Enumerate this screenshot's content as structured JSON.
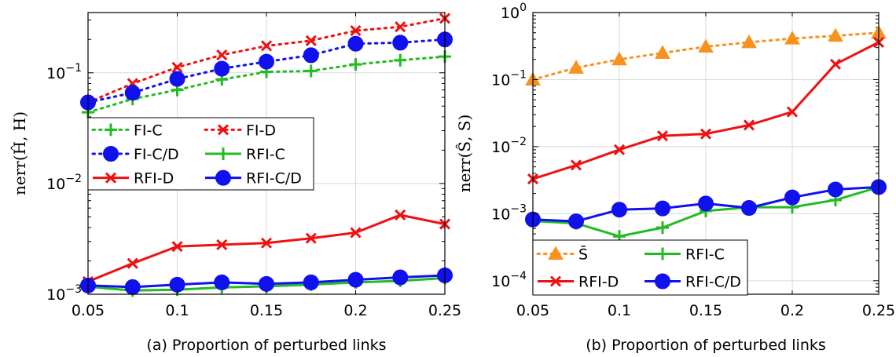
{
  "chart_data": [
    {
      "type": "line",
      "caption": "(a) Proportion of perturbed links",
      "ylabel": "nerr(Ĥ, H)",
      "yscale": "log",
      "xlim": [
        0.05,
        0.25
      ],
      "ylim": [
        0.001,
        0.35
      ],
      "x_ticks": [
        "0.05",
        "0.1",
        "0.15",
        "0.2",
        "0.25"
      ],
      "y_ticks": [
        {
          "base": "10",
          "exp": "−1",
          "value": 0.1
        },
        {
          "base": "10",
          "exp": "−2",
          "value": 0.01
        },
        {
          "base": "10",
          "exp": "−3",
          "value": 0.001
        }
      ],
      "grid": true,
      "legend_position": "center-left",
      "x": [
        0.05,
        0.075,
        0.1,
        0.125,
        0.15,
        0.175,
        0.2,
        0.225,
        0.25
      ],
      "series": [
        {
          "name": "FI-C",
          "color": "#22bb22",
          "style": "dotted",
          "marker": "plus",
          "values": [
            0.044,
            0.058,
            0.07,
            0.087,
            0.102,
            0.104,
            0.119,
            0.13,
            0.14
          ]
        },
        {
          "name": "FI-D",
          "color": "#ee1111",
          "style": "dotted",
          "marker": "x",
          "values": [
            0.054,
            0.08,
            0.112,
            0.145,
            0.175,
            0.195,
            0.24,
            0.26,
            0.31
          ]
        },
        {
          "name": "FI-C/D",
          "color": "#1111ee",
          "style": "dotted",
          "marker": "circle",
          "values": [
            0.054,
            0.066,
            0.088,
            0.109,
            0.126,
            0.144,
            0.183,
            0.187,
            0.2
          ]
        },
        {
          "name": "RFI-C",
          "color": "#22bb22",
          "style": "solid",
          "marker": "plus",
          "values": [
            0.00117,
            0.00108,
            0.0011,
            0.00115,
            0.00118,
            0.00122,
            0.00128,
            0.00132,
            0.0014
          ]
        },
        {
          "name": "RFI-D",
          "color": "#ee1111",
          "style": "solid",
          "marker": "x",
          "values": [
            0.0013,
            0.0019,
            0.0027,
            0.0028,
            0.0029,
            0.0032,
            0.0036,
            0.0052,
            0.0043
          ]
        },
        {
          "name": "RFI-C/D",
          "color": "#1111ee",
          "style": "solid",
          "marker": "circle",
          "values": [
            0.0012,
            0.00116,
            0.00122,
            0.00128,
            0.00124,
            0.00128,
            0.00135,
            0.00142,
            0.00148
          ]
        }
      ]
    },
    {
      "type": "line",
      "caption": "(b) Proportion of perturbed links",
      "ylabel": "nerr(Ŝ, S)",
      "yscale": "log",
      "xlim": [
        0.05,
        0.25
      ],
      "ylim": [
        6e-05,
        1
      ],
      "x_ticks": [
        "0.05",
        "0.1",
        "0.15",
        "0.2",
        "0.25"
      ],
      "y_ticks": [
        {
          "base": "10",
          "exp": "0",
          "value": 1
        },
        {
          "base": "10",
          "exp": "−1",
          "value": 0.1
        },
        {
          "base": "10",
          "exp": "−2",
          "value": 0.01
        },
        {
          "base": "10",
          "exp": "−3",
          "value": 0.001
        },
        {
          "base": "10",
          "exp": "−4",
          "value": 0.0001
        }
      ],
      "grid": true,
      "legend_position": "bottom-left",
      "x": [
        0.05,
        0.075,
        0.1,
        0.125,
        0.15,
        0.175,
        0.2,
        0.225,
        0.25
      ],
      "series": [
        {
          "name": "S̄",
          "color": "#f7921e",
          "style": "dotted",
          "marker": "triangle",
          "values": [
            0.1,
            0.15,
            0.2,
            0.25,
            0.31,
            0.36,
            0.41,
            0.45,
            0.5
          ]
        },
        {
          "name": "RFI-C",
          "color": "#22bb22",
          "style": "solid",
          "marker": "plus",
          "values": [
            0.00078,
            0.00072,
            0.00046,
            0.00062,
            0.0011,
            0.00125,
            0.00125,
            0.0016,
            0.0025
          ]
        },
        {
          "name": "RFI-D",
          "color": "#ee1111",
          "style": "solid",
          "marker": "x",
          "values": [
            0.0033,
            0.0053,
            0.009,
            0.0145,
            0.0155,
            0.021,
            0.033,
            0.17,
            0.36
          ]
        },
        {
          "name": "RFI-C/D",
          "color": "#1111ee",
          "style": "solid",
          "marker": "circle",
          "values": [
            0.00082,
            0.00077,
            0.00115,
            0.0012,
            0.00142,
            0.00122,
            0.00175,
            0.0023,
            0.0025
          ]
        }
      ]
    }
  ]
}
